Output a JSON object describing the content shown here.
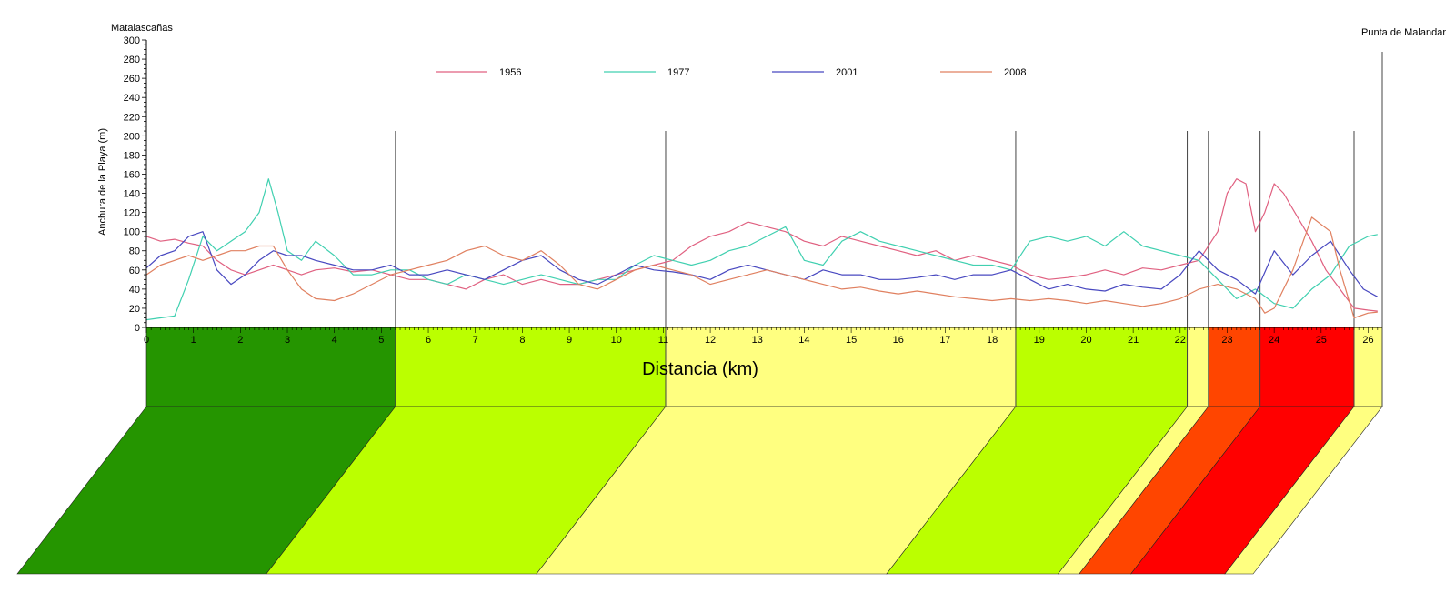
{
  "labels": {
    "left_location": "Matalascañas",
    "right_location": "Punta de Malandar",
    "ylabel": "Anchura de la Playa (m)",
    "xlabel": "Distancia (km)"
  },
  "chart_data": {
    "type": "line",
    "xlim": [
      0,
      26.3
    ],
    "ylim": [
      0,
      300
    ],
    "yticks": [
      0,
      20,
      40,
      60,
      80,
      100,
      120,
      140,
      160,
      180,
      200,
      220,
      240,
      260,
      280,
      300
    ],
    "xticks": [
      0,
      1,
      2,
      3,
      4,
      5,
      6,
      7,
      8,
      9,
      10,
      11,
      12,
      13,
      14,
      15,
      16,
      17,
      18,
      19,
      20,
      21,
      22,
      23,
      24,
      25,
      26
    ],
    "grid": false,
    "legend_position": "top",
    "dividers_km": [
      5.3,
      11.05,
      18.5,
      22.15,
      22.6,
      23.7,
      25.7
    ],
    "segments": [
      {
        "from": 0,
        "to": 5.3,
        "color": "#259500"
      },
      {
        "from": 5.3,
        "to": 11.05,
        "color": "#bbff00"
      },
      {
        "from": 11.05,
        "to": 18.5,
        "color": "#ffff80"
      },
      {
        "from": 18.5,
        "to": 22.15,
        "color": "#bbff00"
      },
      {
        "from": 22.15,
        "to": 22.6,
        "color": "#ffff80"
      },
      {
        "from": 22.6,
        "to": 23.7,
        "color": "#ff4500"
      },
      {
        "from": 23.7,
        "to": 25.7,
        "color": "#ff0000"
      },
      {
        "from": 25.7,
        "to": 26.3,
        "color": "#ffff80"
      }
    ],
    "series": [
      {
        "name": "1956",
        "color": "#e06080",
        "x": [
          0,
          0.3,
          0.6,
          0.9,
          1.2,
          1.5,
          1.8,
          2.1,
          2.4,
          2.7,
          3.0,
          3.3,
          3.6,
          4.0,
          4.4,
          4.8,
          5.2,
          5.6,
          6.0,
          6.4,
          6.8,
          7.2,
          7.6,
          8.0,
          8.4,
          8.8,
          9.2,
          9.6,
          10.0,
          10.4,
          10.8,
          11.2,
          11.6,
          12.0,
          12.4,
          12.8,
          13.2,
          13.6,
          14.0,
          14.4,
          14.8,
          15.2,
          15.6,
          16.0,
          16.4,
          16.8,
          17.2,
          17.6,
          18.0,
          18.4,
          18.8,
          19.2,
          19.6,
          20.0,
          20.4,
          20.8,
          21.2,
          21.6,
          22.0,
          22.4,
          22.8,
          23.0,
          23.2,
          23.4,
          23.6,
          23.8,
          24.0,
          24.2,
          24.5,
          24.8,
          25.1,
          25.4,
          25.7,
          26.0,
          26.2
        ],
        "y": [
          95,
          90,
          92,
          88,
          85,
          70,
          60,
          55,
          60,
          65,
          60,
          55,
          60,
          62,
          58,
          60,
          55,
          50,
          50,
          45,
          40,
          50,
          55,
          45,
          50,
          45,
          45,
          50,
          55,
          60,
          65,
          70,
          85,
          95,
          100,
          110,
          105,
          100,
          90,
          85,
          95,
          90,
          85,
          80,
          75,
          80,
          70,
          75,
          70,
          65,
          55,
          50,
          52,
          55,
          60,
          55,
          62,
          60,
          65,
          70,
          100,
          140,
          155,
          150,
          100,
          120,
          150,
          140,
          115,
          90,
          60,
          40,
          20,
          18,
          17
        ]
      },
      {
        "name": "1977",
        "color": "#40d0b0",
        "x": [
          0,
          0.3,
          0.6,
          0.9,
          1.2,
          1.5,
          1.8,
          2.1,
          2.4,
          2.6,
          2.8,
          3.0,
          3.3,
          3.6,
          4.0,
          4.4,
          4.8,
          5.2,
          5.6,
          6.0,
          6.4,
          6.8,
          7.2,
          7.6,
          8.0,
          8.4,
          8.8,
          9.2,
          9.6,
          10.0,
          10.4,
          10.8,
          11.2,
          11.6,
          12.0,
          12.4,
          12.8,
          13.2,
          13.6,
          14.0,
          14.4,
          14.8,
          15.2,
          15.6,
          16.0,
          16.4,
          16.8,
          17.2,
          17.6,
          18.0,
          18.4,
          18.8,
          19.2,
          19.6,
          20.0,
          20.4,
          20.8,
          21.2,
          21.6,
          22.0,
          22.4,
          22.8,
          23.2,
          23.6,
          24.0,
          24.4,
          24.8,
          25.2,
          25.6,
          26.0,
          26.2
        ],
        "y": [
          8,
          10,
          12,
          50,
          95,
          80,
          90,
          100,
          120,
          155,
          120,
          80,
          70,
          90,
          75,
          55,
          55,
          60,
          60,
          50,
          45,
          55,
          50,
          45,
          50,
          55,
          50,
          45,
          50,
          50,
          65,
          75,
          70,
          65,
          70,
          80,
          85,
          95,
          105,
          70,
          65,
          90,
          100,
          90,
          85,
          80,
          75,
          70,
          65,
          65,
          60,
          90,
          95,
          90,
          95,
          85,
          100,
          85,
          80,
          75,
          70,
          50,
          30,
          40,
          25,
          20,
          40,
          55,
          85,
          95,
          97
        ]
      },
      {
        "name": "2001",
        "color": "#4848c0",
        "x": [
          0,
          0.3,
          0.6,
          0.9,
          1.2,
          1.5,
          1.8,
          2.1,
          2.4,
          2.7,
          3.0,
          3.3,
          3.6,
          4.0,
          4.4,
          4.8,
          5.2,
          5.6,
          6.0,
          6.4,
          6.8,
          7.2,
          7.6,
          8.0,
          8.4,
          8.8,
          9.2,
          9.6,
          10.0,
          10.4,
          10.8,
          11.2,
          11.6,
          12.0,
          12.4,
          12.8,
          13.2,
          13.6,
          14.0,
          14.4,
          14.8,
          15.2,
          15.6,
          16.0,
          16.4,
          16.8,
          17.2,
          17.6,
          18.0,
          18.4,
          18.8,
          19.2,
          19.6,
          20.0,
          20.4,
          20.8,
          21.2,
          21.6,
          22.0,
          22.4,
          22.8,
          23.2,
          23.6,
          24.0,
          24.4,
          24.8,
          25.2,
          25.6,
          25.9,
          26.2
        ],
        "y": [
          62,
          75,
          80,
          95,
          100,
          60,
          45,
          55,
          70,
          80,
          75,
          75,
          70,
          65,
          60,
          60,
          65,
          55,
          55,
          60,
          55,
          50,
          60,
          70,
          75,
          60,
          50,
          45,
          55,
          65,
          60,
          58,
          55,
          50,
          60,
          65,
          60,
          55,
          50,
          60,
          55,
          55,
          50,
          50,
          52,
          55,
          50,
          55,
          55,
          60,
          50,
          40,
          45,
          40,
          38,
          45,
          42,
          40,
          55,
          80,
          60,
          50,
          35,
          80,
          55,
          75,
          90,
          60,
          40,
          32
        ]
      },
      {
        "name": "2008",
        "color": "#e08060",
        "x": [
          0,
          0.3,
          0.6,
          0.9,
          1.2,
          1.5,
          1.8,
          2.1,
          2.4,
          2.7,
          3.0,
          3.3,
          3.6,
          4.0,
          4.4,
          4.8,
          5.2,
          5.6,
          6.0,
          6.4,
          6.8,
          7.2,
          7.6,
          8.0,
          8.4,
          8.8,
          9.2,
          9.6,
          10.0,
          10.4,
          10.8,
          11.2,
          11.6,
          12.0,
          12.4,
          12.8,
          13.2,
          13.6,
          14.0,
          14.4,
          14.8,
          15.2,
          15.6,
          16.0,
          16.4,
          16.8,
          17.2,
          17.6,
          18.0,
          18.4,
          18.8,
          19.2,
          19.6,
          20.0,
          20.4,
          20.8,
          21.2,
          21.6,
          22.0,
          22.4,
          22.8,
          23.2,
          23.6,
          23.8,
          24.0,
          24.4,
          24.8,
          25.2,
          25.4,
          25.7,
          26.0,
          26.2
        ],
        "y": [
          55,
          65,
          70,
          75,
          70,
          75,
          80,
          80,
          85,
          85,
          60,
          40,
          30,
          28,
          35,
          45,
          55,
          60,
          65,
          70,
          80,
          85,
          75,
          70,
          80,
          65,
          45,
          40,
          50,
          60,
          65,
          60,
          55,
          45,
          50,
          55,
          60,
          55,
          50,
          45,
          40,
          42,
          38,
          35,
          38,
          35,
          32,
          30,
          28,
          30,
          28,
          30,
          28,
          25,
          28,
          25,
          22,
          25,
          30,
          40,
          45,
          40,
          30,
          15,
          20,
          60,
          115,
          100,
          60,
          10,
          15,
          16
        ]
      }
    ]
  }
}
